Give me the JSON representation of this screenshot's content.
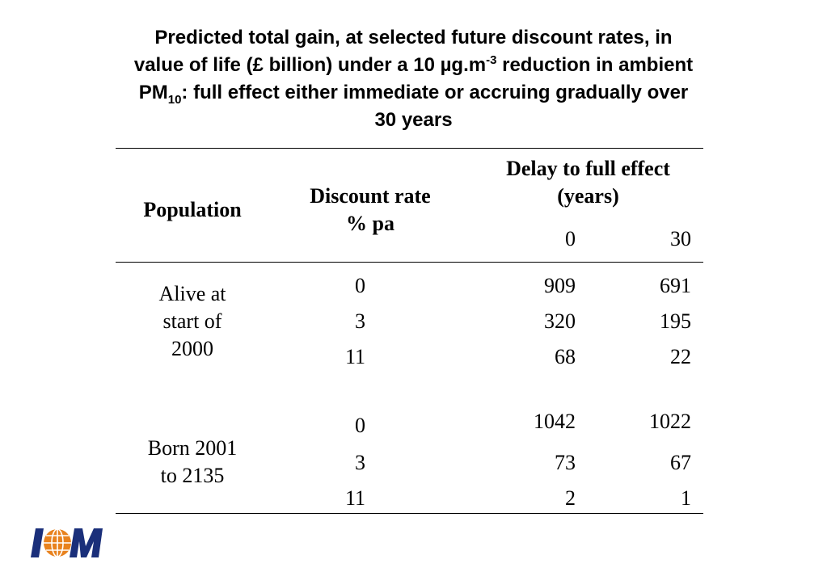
{
  "title": {
    "line1": "Predicted total gain, at selected future discount rates, in",
    "line2_a": "value of life (£ billion) under a 10 µg.m",
    "line2_sup": "-3",
    "line2_b": " reduction in ambient",
    "line3_a": "PM",
    "line3_sub": "10",
    "line3_b": ":  full effect either immediate or accruing gradually over",
    "line4": "30 years"
  },
  "table": {
    "headers": {
      "population": "Population",
      "discount_line1": "Discount rate",
      "discount_line2": "% pa",
      "delay_line1": "Delay to full effect",
      "delay_line2": "(years)",
      "delay_0": "0",
      "delay_30": "30"
    },
    "groups": [
      {
        "population_lines": [
          "Alive at",
          "start of",
          "2000"
        ],
        "rows": [
          {
            "rate": "0",
            "d0": "909",
            "d30": "691"
          },
          {
            "rate": "3",
            "d0": "320",
            "d30": "195"
          },
          {
            "rate": "11",
            "d0": "68",
            "d30": "22"
          }
        ]
      },
      {
        "population_lines": [
          "Born 2001",
          "to 2135"
        ],
        "rows": [
          {
            "rate": "0",
            "d0": "1042",
            "d30": "1022"
          },
          {
            "rate": "3",
            "d0": "73",
            "d30": "67"
          },
          {
            "rate": "11",
            "d0": "2",
            "d30": "1"
          }
        ]
      }
    ]
  },
  "logo": {
    "letters": "IOM",
    "colors": {
      "letters": "#1a2f7a",
      "globe": "#e8821e"
    }
  }
}
